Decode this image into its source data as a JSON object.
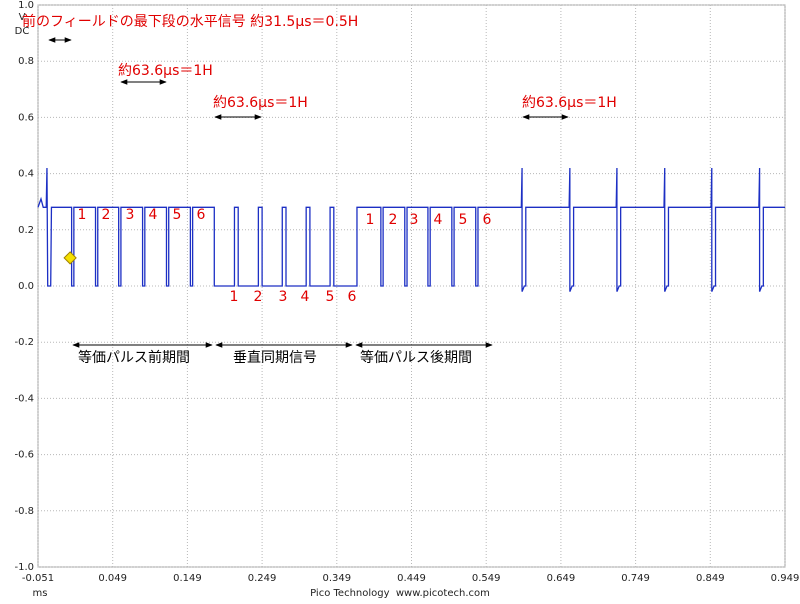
{
  "chart_data": {
    "type": "line",
    "y_unit": "V",
    "y_coupling": "DC",
    "x_unit": "ms",
    "footer": "Pico Technology  www.picotech.com",
    "xlim": [
      -0.051,
      0.949
    ],
    "ylim": [
      -1.0,
      1.0
    ],
    "xticks": [
      -0.051,
      0.049,
      0.149,
      0.249,
      0.349,
      0.449,
      0.549,
      0.649,
      0.749,
      0.849,
      0.949
    ],
    "yticks": [
      {
        "value": 1.0,
        "label": "1.0"
      },
      0.8,
      0.6,
      0.4,
      0.2,
      {
        "value": 0.0,
        "label": "0.0"
      },
      -0.2,
      -0.4,
      -0.6,
      -0.8,
      {
        "value": -1.0,
        "label": "-1.0"
      }
    ],
    "grid": true,
    "series": [
      {
        "color": "#1c2fc4",
        "x": [
          -0.051,
          -0.047,
          -0.044,
          -0.04,
          -0.039,
          -0.038,
          -0.034,
          -0.033,
          -0.006,
          -0.006,
          -0.003,
          -0.003,
          0.026,
          0.026,
          0.029,
          0.029,
          0.057,
          0.057,
          0.06,
          0.06,
          0.089,
          0.089,
          0.092,
          0.092,
          0.121,
          0.121,
          0.124,
          0.124,
          0.153,
          0.153,
          0.156,
          0.156,
          0.185,
          0.185,
          0.212,
          0.212,
          0.217,
          0.217,
          0.244,
          0.244,
          0.249,
          0.249,
          0.276,
          0.276,
          0.281,
          0.281,
          0.308,
          0.308,
          0.313,
          0.313,
          0.34,
          0.34,
          0.345,
          0.345,
          0.376,
          0.376,
          0.408,
          0.408,
          0.411,
          0.411,
          0.44,
          0.44,
          0.443,
          0.443,
          0.471,
          0.471,
          0.474,
          0.474,
          0.503,
          0.503,
          0.506,
          0.506,
          0.535,
          0.535,
          0.538,
          0.538,
          0.596,
          0.597,
          0.597,
          0.6,
          0.602,
          0.602,
          0.66,
          0.661,
          0.661,
          0.664,
          0.666,
          0.666,
          0.723,
          0.724,
          0.724,
          0.727,
          0.729,
          0.729,
          0.787,
          0.788,
          0.788,
          0.791,
          0.793,
          0.793,
          0.85,
          0.851,
          0.851,
          0.854,
          0.856,
          0.856,
          0.914,
          0.915,
          0.915,
          0.918,
          0.92,
          0.92,
          0.949
        ],
        "values": [
          0.28,
          0.31,
          0.28,
          0.28,
          0.42,
          0.0,
          0.0,
          0.28,
          0.28,
          0.0,
          0.0,
          0.28,
          0.28,
          0.0,
          0.0,
          0.28,
          0.28,
          0.0,
          0.0,
          0.28,
          0.28,
          0.0,
          0.0,
          0.28,
          0.28,
          0.0,
          0.0,
          0.28,
          0.28,
          0.0,
          0.0,
          0.28,
          0.28,
          0.0,
          0.0,
          0.28,
          0.28,
          0.0,
          0.0,
          0.28,
          0.28,
          0.0,
          0.0,
          0.28,
          0.28,
          0.0,
          0.0,
          0.28,
          0.28,
          0.0,
          0.0,
          0.28,
          0.28,
          0.0,
          0.0,
          0.28,
          0.28,
          0.0,
          0.0,
          0.28,
          0.28,
          0.0,
          0.0,
          0.28,
          0.28,
          0.0,
          0.0,
          0.28,
          0.28,
          0.0,
          0.0,
          0.28,
          0.28,
          0.0,
          0.0,
          0.28,
          0.28,
          0.42,
          -0.02,
          0.0,
          0.0,
          0.28,
          0.28,
          0.42,
          -0.02,
          0.0,
          0.0,
          0.28,
          0.28,
          0.42,
          -0.02,
          0.0,
          0.0,
          0.28,
          0.28,
          0.42,
          -0.02,
          0.0,
          0.0,
          0.28,
          0.28,
          0.42,
          -0.02,
          0.0,
          0.0,
          0.28,
          0.28,
          0.42,
          -0.02,
          0.0,
          0.0,
          0.28,
          0.28
        ]
      }
    ],
    "trigger": {
      "x": -0.008,
      "y": 0.1,
      "color": "#f5e000"
    },
    "annotations": {
      "top": "前のフィールドの最下段の水平信号 約31.5μs＝0.5H",
      "line1": "約63.6μs＝1H",
      "line2": "約63.6μs＝1H",
      "line3": "約63.6μs＝1H",
      "pre_eq": "等価パルス前期間",
      "vsync": "垂直同期信号",
      "post_eq": "等価パルス後期間",
      "pulse_groups": [
        [
          1,
          2,
          3,
          4,
          5,
          6
        ],
        [
          1,
          2,
          3,
          4,
          5,
          6
        ],
        [
          1,
          2,
          3,
          4,
          5,
          6
        ]
      ]
    }
  }
}
